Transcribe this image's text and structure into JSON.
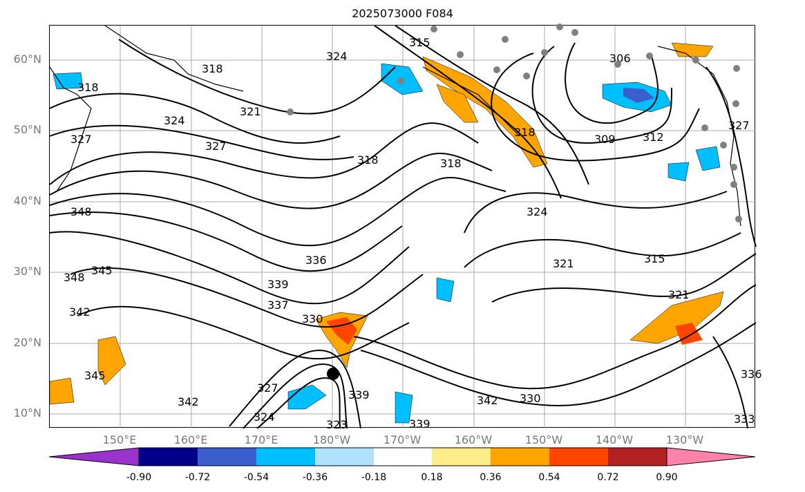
{
  "title": "2025073000 F084",
  "lat_labels": [
    "60°N",
    "50°N",
    "40°N",
    "30°N",
    "20°N",
    "10°N"
  ],
  "lon_labels": [
    "150°E",
    "160°E",
    "170°E",
    "180°W",
    "170°W",
    "160°W",
    "150°W",
    "140°W",
    "130°W"
  ],
  "contour_labels": [
    "324",
    "318",
    "315",
    "306",
    "318",
    "321",
    "324",
    "327",
    "327",
    "318",
    "318",
    "318",
    "309",
    "312",
    "327",
    "348",
    "324",
    "348",
    "345",
    "336",
    "339",
    "321",
    "315",
    "342",
    "337",
    "330",
    "321",
    "345",
    "327",
    "339",
    "342",
    "324",
    "342",
    "330",
    "336",
    "339",
    "333",
    "323"
  ],
  "colorbar": {
    "tick_labels": [
      "-0.90",
      "-0.72",
      "-0.54",
      "-0.36",
      "-0.18",
      "0.18",
      "0.36",
      "0.54",
      "0.72",
      "0.90"
    ],
    "colors": [
      "#9a32cd",
      "#00008b",
      "#3a5fcd",
      "#00bfff",
      "#b0e2ff",
      "#ffffff",
      "#ffec8b",
      "#ffa500",
      "#ff4500",
      "#b22222",
      "#ff82ab",
      "#ff82ab"
    ]
  },
  "colors": {
    "contour": "#000000",
    "grid": "#aaaaaa",
    "land_station": "#808080",
    "storm_center": "#000000"
  },
  "icons": {
    "storm_marker": "filled-circle",
    "station_marker": "gray-dot"
  }
}
